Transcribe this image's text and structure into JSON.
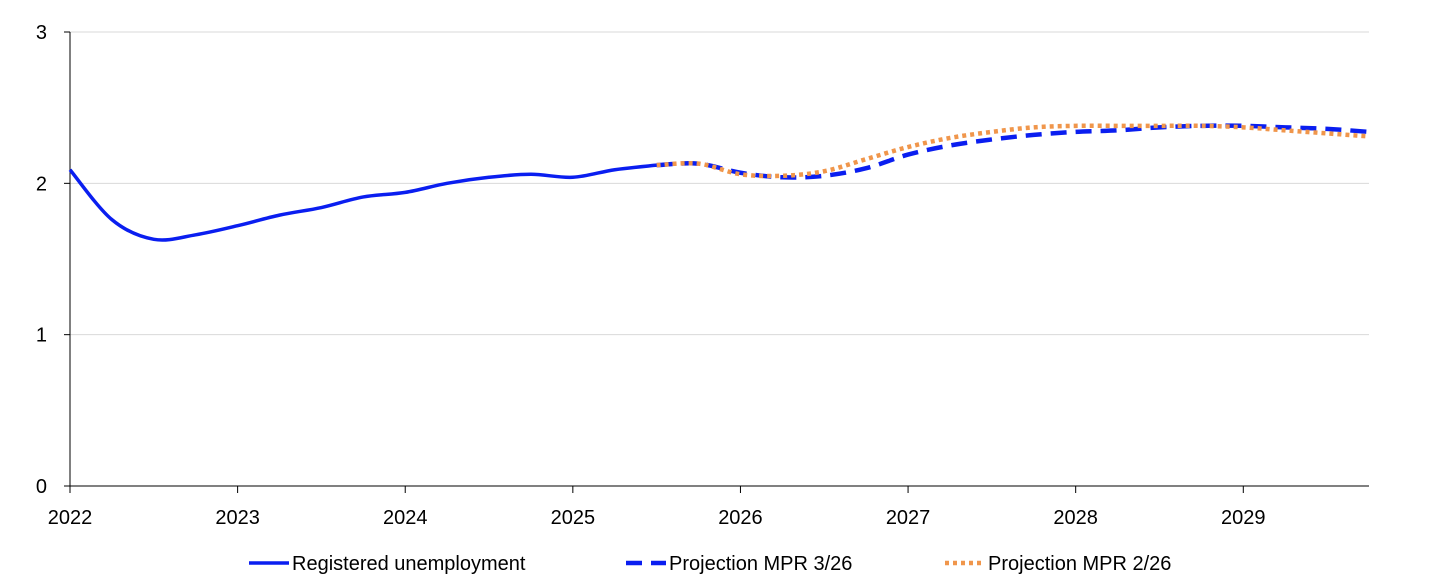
{
  "chart_data": {
    "type": "line",
    "title": "",
    "xlabel": "",
    "ylabel": "",
    "x_range": [
      2022,
      2029.75
    ],
    "ylim": [
      0,
      3
    ],
    "y_ticks": [
      "0",
      "1",
      "2",
      "3"
    ],
    "x_ticks": [
      "2022",
      "2023",
      "2024",
      "2025",
      "2026",
      "2027",
      "2028",
      "2029"
    ],
    "grid": "horizontal",
    "legend_position": "bottom",
    "series": [
      {
        "name": "Registered unemployment",
        "style": "solid",
        "color": "#0a1ef0",
        "points": [
          [
            2022.0,
            2.09
          ],
          [
            2022.25,
            1.76
          ],
          [
            2022.5,
            1.63
          ],
          [
            2022.75,
            1.66
          ],
          [
            2023.0,
            1.72
          ],
          [
            2023.25,
            1.79
          ],
          [
            2023.5,
            1.84
          ],
          [
            2023.75,
            1.91
          ],
          [
            2024.0,
            1.94
          ],
          [
            2024.25,
            2.0
          ],
          [
            2024.5,
            2.04
          ],
          [
            2024.75,
            2.06
          ],
          [
            2025.0,
            2.04
          ],
          [
            2025.25,
            2.09
          ],
          [
            2025.5,
            2.12
          ]
        ]
      },
      {
        "name": "Projection MPR 3/26",
        "style": "dashed",
        "color": "#0a1ef0",
        "points": [
          [
            2025.5,
            2.12
          ],
          [
            2025.75,
            2.13
          ],
          [
            2026.0,
            2.07
          ],
          [
            2026.25,
            2.04
          ],
          [
            2026.5,
            2.05
          ],
          [
            2026.75,
            2.1
          ],
          [
            2027.0,
            2.19
          ],
          [
            2027.25,
            2.25
          ],
          [
            2027.5,
            2.29
          ],
          [
            2027.75,
            2.32
          ],
          [
            2028.0,
            2.34
          ],
          [
            2028.25,
            2.35
          ],
          [
            2028.5,
            2.37
          ],
          [
            2028.75,
            2.38
          ],
          [
            2029.0,
            2.38
          ],
          [
            2029.25,
            2.37
          ],
          [
            2029.5,
            2.36
          ],
          [
            2029.75,
            2.34
          ]
        ]
      },
      {
        "name": "Projection MPR 2/26",
        "style": "dotted",
        "color": "#f0964b",
        "points": [
          [
            2025.5,
            2.12
          ],
          [
            2025.75,
            2.13
          ],
          [
            2026.0,
            2.06
          ],
          [
            2026.25,
            2.05
          ],
          [
            2026.5,
            2.08
          ],
          [
            2026.75,
            2.16
          ],
          [
            2027.0,
            2.24
          ],
          [
            2027.25,
            2.3
          ],
          [
            2027.5,
            2.34
          ],
          [
            2027.75,
            2.37
          ],
          [
            2028.0,
            2.38
          ],
          [
            2028.25,
            2.38
          ],
          [
            2028.5,
            2.38
          ],
          [
            2028.75,
            2.38
          ],
          [
            2029.0,
            2.37
          ],
          [
            2029.25,
            2.35
          ],
          [
            2029.5,
            2.33
          ],
          [
            2029.75,
            2.31
          ]
        ]
      }
    ]
  }
}
